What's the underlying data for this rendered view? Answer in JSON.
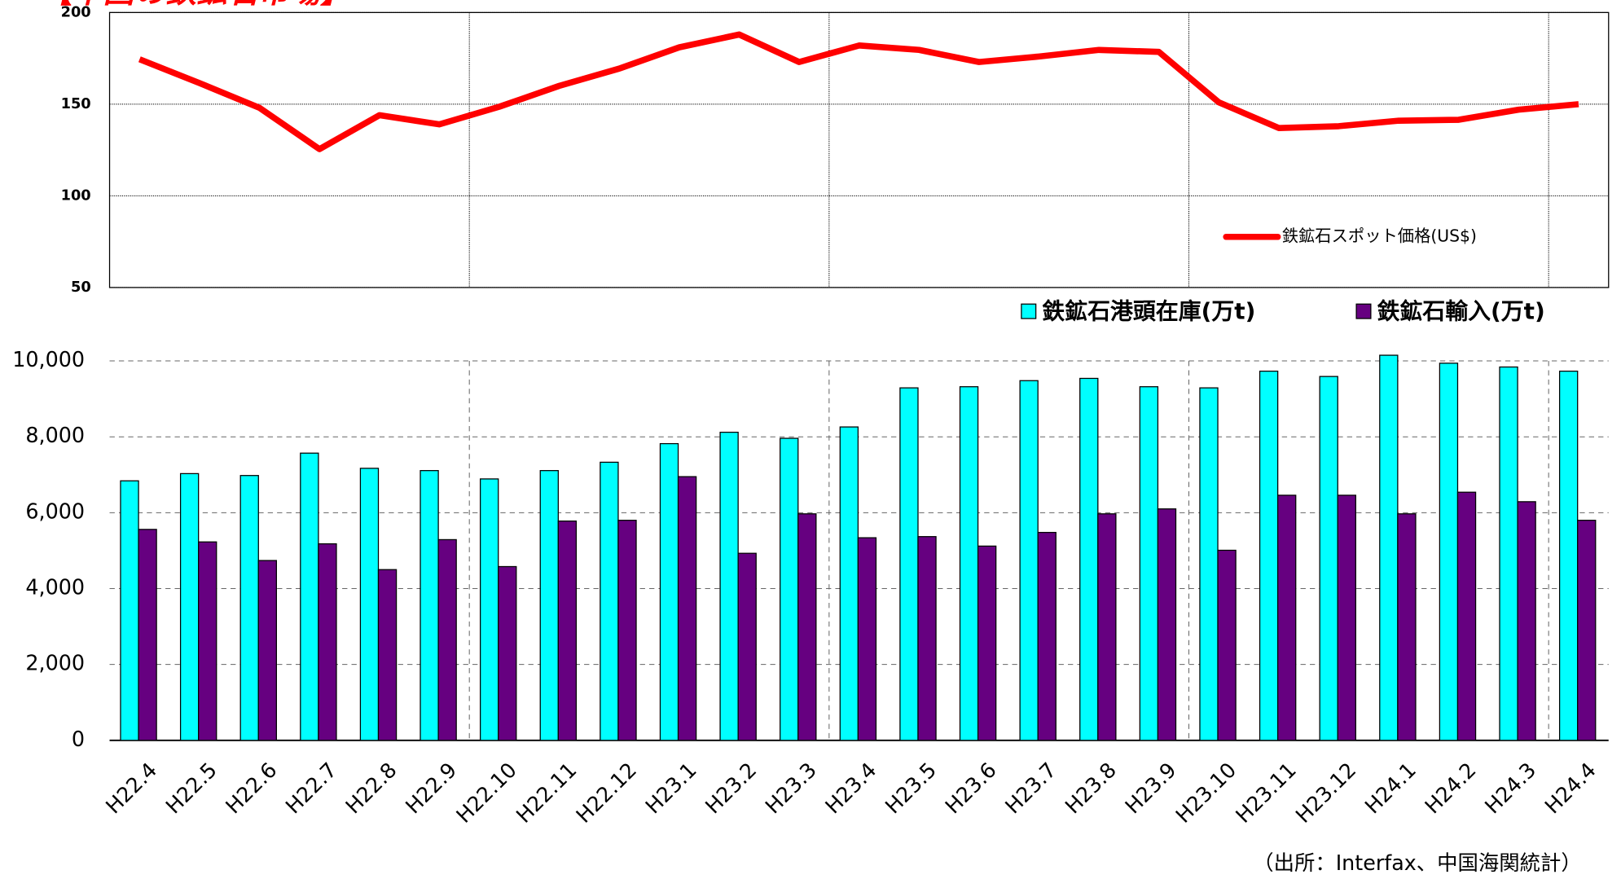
{
  "chart_data": [
    {
      "type": "line",
      "title": "【中国の鉄鉱石市場】",
      "ylim": [
        50,
        200
      ],
      "yticks": [
        50,
        100,
        150,
        200
      ],
      "grid": true,
      "legend": "lower right",
      "series": [
        {
          "name": "鉄鉱石スポット価格(US$)",
          "color": "#ff0000",
          "values": [
            174.5,
            161.5,
            148,
            125.5,
            144,
            139,
            148.6,
            160,
            169.4,
            181,
            188,
            173,
            182,
            179.6,
            173,
            176,
            179.6,
            178.5,
            151,
            137,
            138,
            141,
            141.5,
            147,
            150
          ]
        }
      ]
    },
    {
      "type": "bar",
      "note": "（出所：Interfax、中国海関統計）",
      "legend": "upper right",
      "grid": true,
      "categories": [
        "H22.4",
        "H22.5",
        "H22.6",
        "H22.7",
        "H22.8",
        "H22.9",
        "H22.10",
        "H22.11",
        "H22.12",
        "H23.1",
        "H23.2",
        "H23.3",
        "H23.4",
        "H23.5",
        "H23.6",
        "H23.7",
        "H23.8",
        "H23.9",
        "H23.10",
        "H23.11",
        "H23.12",
        "H24.1",
        "H24.2",
        "H24.3",
        "H24.4"
      ],
      "ylim": [
        0,
        10000
      ],
      "yticks": [
        0,
        {
          "value": 2000,
          "label": "2,000"
        },
        {
          "value": 4000,
          "label": "4,000"
        },
        {
          "value": 6000,
          "label": "6,000"
        },
        {
          "value": 8000,
          "label": "8,000"
        },
        {
          "value": 10000,
          "label": "10,000"
        }
      ],
      "series": [
        {
          "name": "鉄鉱石港頭在庫(万t)",
          "color": "#00ffff",
          "values": [
            6840,
            7030,
            6980,
            7570,
            7170,
            7110,
            6890,
            7110,
            7330,
            7820,
            8120,
            7960,
            8260,
            9290,
            9320,
            9480,
            9540,
            9320,
            9290,
            9730,
            9590,
            10150,
            9940,
            9840,
            9730
          ]
        },
        {
          "name": "鉄鉱石輸入(万t)",
          "color": "#660080",
          "values": [
            5560,
            5230,
            4740,
            5180,
            4500,
            5290,
            4580,
            5780,
            5800,
            6950,
            4930,
            5970,
            5340,
            5370,
            5120,
            5480,
            5970,
            6100,
            5010,
            6460,
            6460,
            5970,
            6540,
            6290,
            5800
          ]
        }
      ]
    }
  ]
}
